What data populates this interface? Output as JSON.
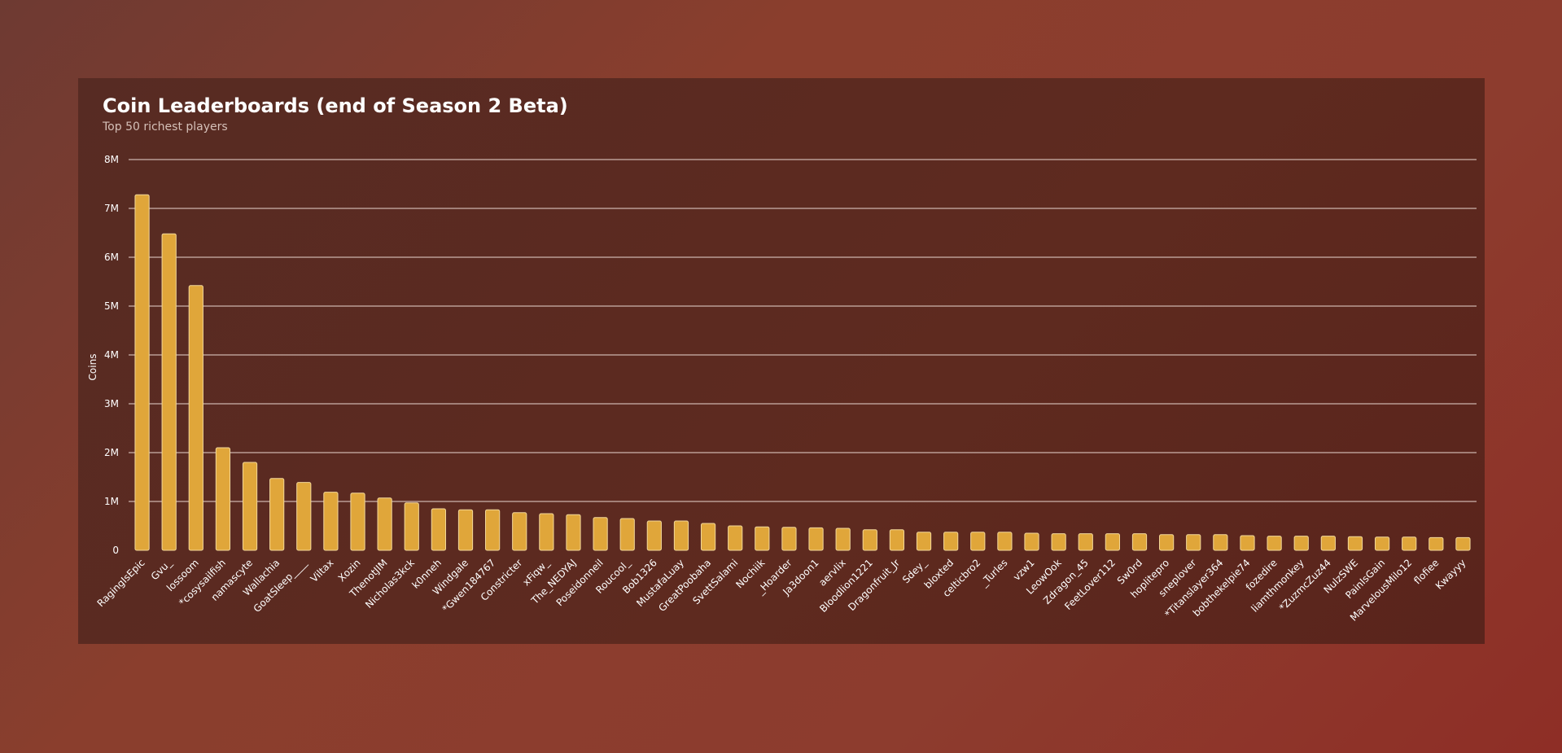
{
  "colors": {
    "bar_fill": "#e0a63a",
    "bar_stroke": "#f3d89a",
    "grid": "#e9d6cf",
    "text": "#ffffff",
    "subtitle": "#d5c0b8"
  },
  "chart_data": {
    "type": "bar",
    "title": "Coin Leaderboards (end of Season 2 Beta)",
    "subtitle": "Top 50 richest players",
    "xlabel": "",
    "ylabel": "Coins",
    "ylim": [
      0,
      8000000
    ],
    "yticks": [
      0,
      1000000,
      2000000,
      3000000,
      4000000,
      5000000,
      6000000,
      7000000,
      8000000
    ],
    "ytick_labels": [
      "0",
      "1M",
      "2M",
      "3M",
      "4M",
      "5M",
      "6M",
      "7M",
      "8M"
    ],
    "grid": true,
    "legend": "none",
    "categories": [
      "RagingIsEpic",
      "Gvu_",
      "lossoom",
      "*cosysailfish",
      "namascyte",
      "Wallachia",
      "GoatSleep____",
      "Viltax",
      "Xozin",
      "ThenotJIM",
      "Nicholas3kck",
      "k0nneh",
      "Windgale",
      "*Gwen184767",
      "Constricter",
      "xFiqw_",
      "The_NEDYAJ",
      "Poseidonneil",
      "Roucool_",
      "Bob1326",
      "MustafaLuay",
      "GreatPoobaha",
      "SvettSalami",
      "Nochiik",
      "_Hoarder",
      "Ja3doon1",
      "aervlix",
      "Bloodlion1221",
      "Dragonfruit_Jr",
      "Sdey_",
      "bloxted",
      "celticbro2",
      "_Turles",
      "vzw1",
      "LeowOok",
      "Zdragon_45",
      "FeetLover112",
      "Sw0rd",
      "hoplitepro",
      "sneplover",
      "*Titanslayer364",
      "bobthekelpie74",
      "fozedire",
      "liamthmonkey",
      "*ZuzmcZuz44",
      "NulzSWE",
      "PainIsGain",
      "MarvelousMilo12",
      "flofiee",
      "Kwayyy"
    ],
    "values": [
      7280000,
      6480000,
      5420000,
      2100000,
      1800000,
      1470000,
      1390000,
      1190000,
      1170000,
      1070000,
      970000,
      850000,
      830000,
      830000,
      770000,
      750000,
      730000,
      670000,
      650000,
      600000,
      600000,
      550000,
      500000,
      480000,
      470000,
      460000,
      450000,
      420000,
      420000,
      370000,
      370000,
      370000,
      370000,
      350000,
      340000,
      340000,
      340000,
      340000,
      320000,
      320000,
      320000,
      300000,
      290000,
      290000,
      290000,
      280000,
      270000,
      270000,
      260000,
      260000
    ]
  }
}
